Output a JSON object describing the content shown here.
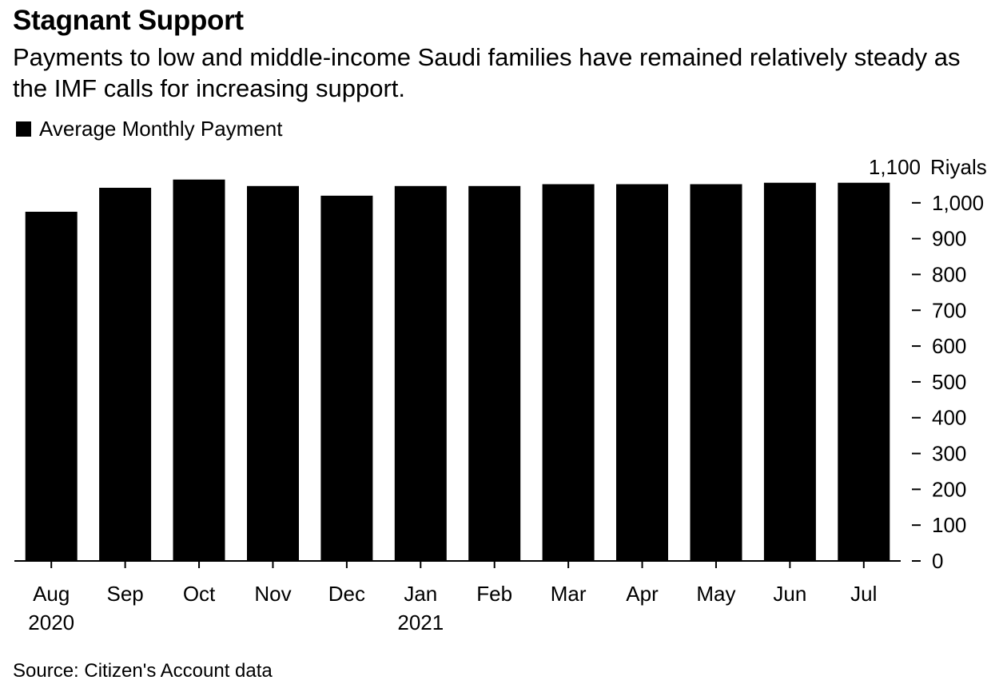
{
  "header": {
    "title": "Stagnant Support",
    "subtitle": "Payments to low and middle-income Saudi families have remained relatively steady as the IMF calls for increasing support."
  },
  "legend": {
    "label": "Average Monthly Payment",
    "color": "#000000"
  },
  "footer": {
    "source": "Source: Citizen's Account data"
  },
  "chart_data": {
    "type": "bar",
    "title": "Stagnant Support",
    "subtitle": "Payments to low and middle-income Saudi families have remained relatively steady as the IMF calls for increasing support.",
    "xlabel": "",
    "ylabel": "",
    "y_unit": "Riyals",
    "y_axis_side": "right",
    "ylim": [
      0,
      1100
    ],
    "y_ticks": [
      0,
      100,
      200,
      300,
      400,
      500,
      600,
      700,
      800,
      900,
      1000,
      1100
    ],
    "y_tick_labels": [
      "0",
      "100",
      "200",
      "300",
      "400",
      "500",
      "600",
      "700",
      "800",
      "900",
      "1,000",
      "1,100"
    ],
    "grid": false,
    "legend_position": "top-left",
    "categories": [
      "Aug",
      "Sep",
      "Oct",
      "Nov",
      "Dec",
      "Jan",
      "Feb",
      "Mar",
      "Apr",
      "May",
      "Jun",
      "Jul"
    ],
    "year_labels": [
      "2020",
      "",
      "",
      "",
      "",
      "2021",
      "",
      "",
      "",
      "",
      "",
      ""
    ],
    "series": [
      {
        "name": "Average Monthly Payment",
        "color": "#000000",
        "values": [
          975,
          1042,
          1065,
          1047,
          1020,
          1047,
          1047,
          1052,
          1052,
          1052,
          1056,
          1056
        ]
      }
    ]
  }
}
